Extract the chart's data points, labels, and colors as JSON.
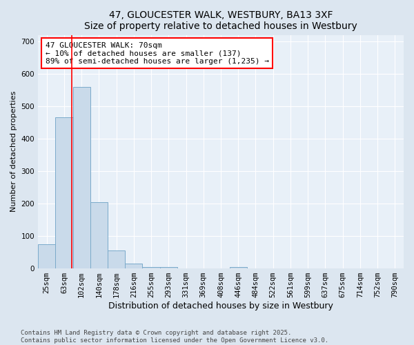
{
  "title": "47, GLOUCESTER WALK, WESTBURY, BA13 3XF",
  "subtitle": "Size of property relative to detached houses in Westbury",
  "xlabel": "Distribution of detached houses by size in Westbury",
  "ylabel": "Number of detached properties",
  "categories": [
    "25sqm",
    "63sqm",
    "102sqm",
    "140sqm",
    "178sqm",
    "216sqm",
    "255sqm",
    "293sqm",
    "331sqm",
    "369sqm",
    "408sqm",
    "446sqm",
    "484sqm",
    "522sqm",
    "561sqm",
    "599sqm",
    "637sqm",
    "675sqm",
    "714sqm",
    "752sqm",
    "790sqm"
  ],
  "values": [
    75,
    465,
    560,
    205,
    55,
    15,
    5,
    5,
    0,
    0,
    0,
    5,
    0,
    0,
    0,
    0,
    0,
    0,
    0,
    0,
    0
  ],
  "bar_color": "#c9daea",
  "bar_edge_color": "#7aaaca",
  "red_line_x": 1.45,
  "annotation_title": "47 GLOUCESTER WALK: 70sqm",
  "annotation_line1": "← 10% of detached houses are smaller (137)",
  "annotation_line2": "89% of semi-detached houses are larger (1,235) →",
  "ylim": [
    0,
    720
  ],
  "yticks": [
    0,
    100,
    200,
    300,
    400,
    500,
    600,
    700
  ],
  "background_color": "#dce6f0",
  "plot_bg_color": "#e8f0f8",
  "footer": "Contains HM Land Registry data © Crown copyright and database right 2025.\nContains public sector information licensed under the Open Government Licence v3.0.",
  "title_fontsize": 10,
  "annotation_fontsize": 8,
  "tick_fontsize": 7.5,
  "xlabel_fontsize": 9,
  "ylabel_fontsize": 8,
  "footer_fontsize": 6.5
}
